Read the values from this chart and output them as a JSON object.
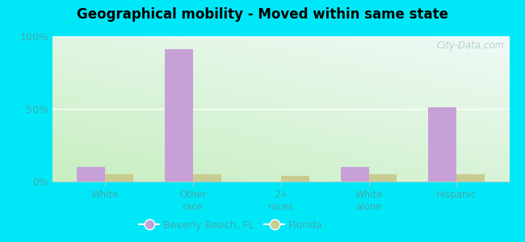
{
  "title": "Geographical mobility - Moved within same state",
  "categories": [
    "White",
    "Other\nrace",
    "2+\nraces",
    "White\nalone",
    "Hispanic"
  ],
  "beverly_beach": [
    10,
    91,
    0,
    10,
    51
  ],
  "florida": [
    5,
    5,
    4,
    5,
    5
  ],
  "beverly_color": "#c8a0d8",
  "florida_color": "#c8cc90",
  "ylim": [
    0,
    100
  ],
  "yticks": [
    0,
    50,
    100
  ],
  "yticklabels": [
    "0%",
    "50%",
    "100%"
  ],
  "bar_width": 0.32,
  "outer_bg": "#00e8f8",
  "tick_label_color": "#44aaaa",
  "legend_label1": "Beverly Beach, FL",
  "legend_label2": "Florida",
  "watermark": "City-Data.com",
  "grid_color": "#ffffff",
  "bg_left_bottom": "#c8eec0",
  "bg_right_top": "#f0faf8"
}
